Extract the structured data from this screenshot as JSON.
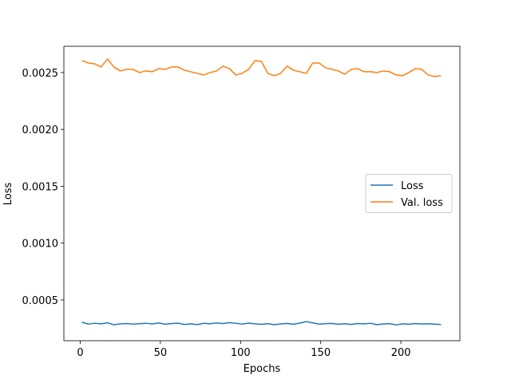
{
  "chart_data": {
    "type": "line",
    "x_label": "Epochs",
    "y_label": "Loss",
    "x": [
      1,
      5,
      9,
      13,
      17,
      21,
      25,
      29,
      33,
      37,
      41,
      45,
      49,
      53,
      57,
      61,
      65,
      69,
      73,
      77,
      81,
      85,
      89,
      93,
      97,
      101,
      105,
      109,
      113,
      117,
      121,
      125,
      129,
      133,
      137,
      141,
      145,
      149,
      153,
      157,
      161,
      165,
      169,
      173,
      177,
      181,
      185,
      189,
      193,
      197,
      201,
      205,
      209,
      213,
      217,
      221,
      225
    ],
    "series": [
      {
        "name": "Loss",
        "color": "#1f77b4",
        "values": [
          0.000305,
          0.000288,
          0.000295,
          0.00029,
          0.0003,
          0.000282,
          0.00029,
          0.000293,
          0.000288,
          0.000292,
          0.000295,
          0.000289,
          0.000298,
          0.000287,
          0.000293,
          0.000296,
          0.000285,
          0.00029,
          0.000284,
          0.000295,
          0.000291,
          0.000298,
          0.000293,
          0.000301,
          0.000295,
          0.000288,
          0.000296,
          0.00029,
          0.000286,
          0.000292,
          0.000283,
          0.000289,
          0.000294,
          0.000287,
          0.000297,
          0.00031,
          0.000299,
          0.000288,
          0.000292,
          0.000294,
          0.000287,
          0.000291,
          0.000285,
          0.000293,
          0.00029,
          0.000295,
          0.000283,
          0.000289,
          0.000292,
          0.000281,
          0.00029,
          0.000287,
          0.000293,
          0.000289,
          0.000291,
          0.000288,
          0.000284
        ]
      },
      {
        "name": "Val. loss",
        "color": "#ff7f0e",
        "values": [
          0.002605,
          0.002584,
          0.002577,
          0.002549,
          0.002619,
          0.002549,
          0.002514,
          0.002528,
          0.002528,
          0.0025,
          0.002514,
          0.002507,
          0.002535,
          0.002528,
          0.002549,
          0.002549,
          0.002521,
          0.002507,
          0.002493,
          0.002479,
          0.0025,
          0.002514,
          0.002556,
          0.002535,
          0.002479,
          0.002493,
          0.002528,
          0.002605,
          0.002598,
          0.002493,
          0.002472,
          0.002493,
          0.002556,
          0.002521,
          0.002507,
          0.002493,
          0.002584,
          0.002584,
          0.002542,
          0.002528,
          0.002514,
          0.002486,
          0.002528,
          0.002535,
          0.002507,
          0.002507,
          0.0025,
          0.002514,
          0.002507,
          0.002479,
          0.002472,
          0.0025,
          0.002535,
          0.002528,
          0.002479,
          0.002465,
          0.002472
        ]
      }
    ],
    "xlim": [
      -10.2,
      236.8
    ],
    "xticks": [
      0,
      50,
      100,
      150,
      200
    ],
    "ylim": [
      0.000142,
      0.002731
    ],
    "yticks": [
      0.0005,
      {
        "value": 0.001,
        "label": "0.0010"
      },
      0.0015,
      {
        "value": 0.002,
        "label": "0.0020"
      },
      0.0025
    ],
    "legend": "center right",
    "grid": false
  }
}
